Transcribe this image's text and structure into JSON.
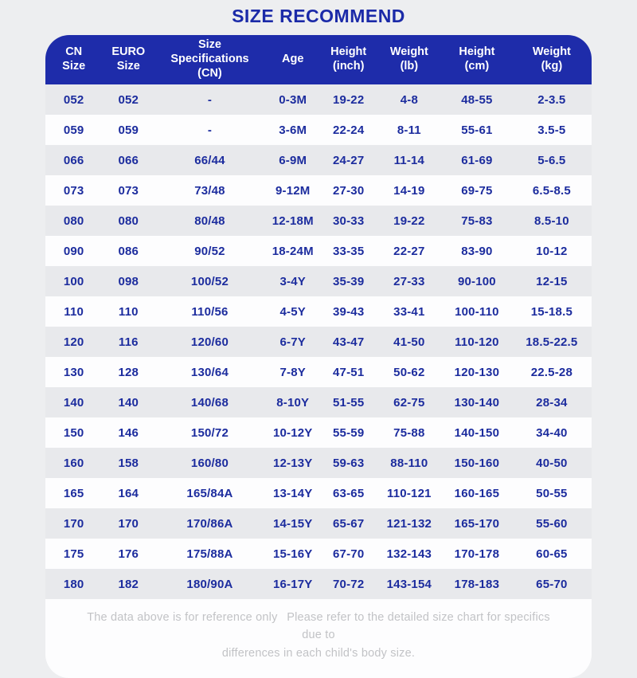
{
  "title": "SIZE RECOMMEND",
  "colors": {
    "page_bg": "#edeef0",
    "header_bg": "#1e2caa",
    "title_color": "#1b2aa8",
    "data_color": "#1c2c9e",
    "row_alt": "#e8e9ec",
    "row_white": "#fdfdfe",
    "footer_text": "#c2c3c6"
  },
  "chart_data": {
    "type": "table",
    "title": "SIZE RECOMMEND",
    "columns": [
      "CN\nSize",
      "EURO\nSize",
      "Size\nSpecifications\n(CN)",
      "Age",
      "Height\n(inch)",
      "Weight\n(lb)",
      "Height\n(cm)",
      "Weight\n(kg)"
    ],
    "rows": [
      [
        "052",
        "052",
        "-",
        "0-3M",
        "19-22",
        "4-8",
        "48-55",
        "2-3.5"
      ],
      [
        "059",
        "059",
        "-",
        "3-6M",
        "22-24",
        "8-11",
        "55-61",
        "3.5-5"
      ],
      [
        "066",
        "066",
        "66/44",
        "6-9M",
        "24-27",
        "11-14",
        "61-69",
        "5-6.5"
      ],
      [
        "073",
        "073",
        "73/48",
        "9-12M",
        "27-30",
        "14-19",
        "69-75",
        "6.5-8.5"
      ],
      [
        "080",
        "080",
        "80/48",
        "12-18M",
        "30-33",
        "19-22",
        "75-83",
        "8.5-10"
      ],
      [
        "090",
        "086",
        "90/52",
        "18-24M",
        "33-35",
        "22-27",
        "83-90",
        "10-12"
      ],
      [
        "100",
        "098",
        "100/52",
        "3-4Y",
        "35-39",
        "27-33",
        "90-100",
        "12-15"
      ],
      [
        "110",
        "110",
        "110/56",
        "4-5Y",
        "39-43",
        "33-41",
        "100-110",
        "15-18.5"
      ],
      [
        "120",
        "116",
        "120/60",
        "6-7Y",
        "43-47",
        "41-50",
        "110-120",
        "18.5-22.5"
      ],
      [
        "130",
        "128",
        "130/64",
        "7-8Y",
        "47-51",
        "50-62",
        "120-130",
        "22.5-28"
      ],
      [
        "140",
        "140",
        "140/68",
        "8-10Y",
        "51-55",
        "62-75",
        "130-140",
        "28-34"
      ],
      [
        "150",
        "146",
        "150/72",
        "10-12Y",
        "55-59",
        "75-88",
        "140-150",
        "34-40"
      ],
      [
        "160",
        "158",
        "160/80",
        "12-13Y",
        "59-63",
        "88-110",
        "150-160",
        "40-50"
      ],
      [
        "165",
        "164",
        "165/84A",
        "13-14Y",
        "63-65",
        "110-121",
        "160-165",
        "50-55"
      ],
      [
        "170",
        "170",
        "170/86A",
        "14-15Y",
        "65-67",
        "121-132",
        "165-170",
        "55-60"
      ],
      [
        "175",
        "176",
        "175/88A",
        "15-16Y",
        "67-70",
        "132-143",
        "170-178",
        "60-65"
      ],
      [
        "180",
        "182",
        "180/90A",
        "16-17Y",
        "70-72",
        "143-154",
        "178-183",
        "65-70"
      ]
    ]
  },
  "footer": {
    "line1": "The data above is for reference only  Please refer to the detailed size chart for specifics due to",
    "line2": "differences in each child's body size."
  }
}
